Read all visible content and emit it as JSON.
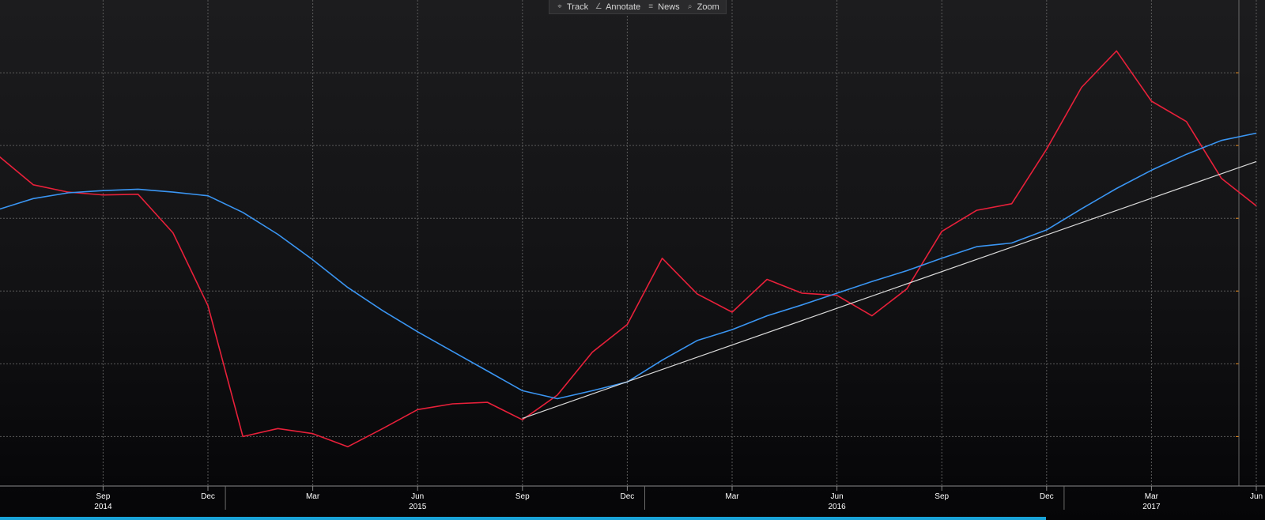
{
  "toolbar": {
    "items": [
      {
        "label": "Track",
        "icon": "crosshair-icon"
      },
      {
        "label": "Annotate",
        "icon": "pencil-icon"
      },
      {
        "label": "News",
        "icon": "news-icon"
      },
      {
        "label": "Zoom",
        "icon": "magnifier-icon"
      }
    ]
  },
  "chart_data": {
    "type": "line",
    "title": "",
    "xlabel": "",
    "ylabel": "",
    "grid": true,
    "colors": {
      "series_a": "#e8203a",
      "series_b": "#3a95f2",
      "trend": "#d9d9d9",
      "grid": "#5a5a5a",
      "axis_text": "#ffffff",
      "bottom_bar": "#19a3d8"
    },
    "x_ticks": [
      {
        "date": "2014-09",
        "label": "Sep",
        "year": "2014"
      },
      {
        "date": "2014-12",
        "label": "Dec"
      },
      {
        "date": "2015-03",
        "label": "Mar"
      },
      {
        "date": "2015-06",
        "label": "Jun",
        "year": "2015"
      },
      {
        "date": "2015-09",
        "label": "Sep"
      },
      {
        "date": "2015-12",
        "label": "Dec"
      },
      {
        "date": "2016-03",
        "label": "Mar"
      },
      {
        "date": "2016-06",
        "label": "Jun",
        "year": "2016"
      },
      {
        "date": "2016-09",
        "label": "Sep"
      },
      {
        "date": "2016-12",
        "label": "Dec"
      },
      {
        "date": "2017-03",
        "label": "Mar",
        "year": "2017"
      },
      {
        "date": "2017-06",
        "label": "Jun"
      }
    ],
    "y_gridlines": [
      100,
      200,
      300,
      400,
      500,
      600
    ],
    "ylim": [
      32,
      700
    ],
    "series": [
      {
        "key": "series_a",
        "points": [
          [
            "2014-06",
            486
          ],
          [
            "2014-07",
            446
          ],
          [
            "2014-08",
            436
          ],
          [
            "2014-09",
            432
          ],
          [
            "2014-10",
            433
          ],
          [
            "2014-11",
            380
          ],
          [
            "2014-12",
            280
          ],
          [
            "2015-01",
            100
          ],
          [
            "2015-02",
            111
          ],
          [
            "2015-03",
            104
          ],
          [
            "2015-04",
            86
          ],
          [
            "2015-05",
            111
          ],
          [
            "2015-06",
            137
          ],
          [
            "2015-07",
            145
          ],
          [
            "2015-08",
            147
          ],
          [
            "2015-09",
            123
          ],
          [
            "2015-10",
            157
          ],
          [
            "2015-11",
            216
          ],
          [
            "2015-12",
            254
          ],
          [
            "2016-01",
            345
          ],
          [
            "2016-02",
            296
          ],
          [
            "2016-03",
            271
          ],
          [
            "2016-04",
            316
          ],
          [
            "2016-05",
            297
          ],
          [
            "2016-06",
            294
          ],
          [
            "2016-07",
            266
          ],
          [
            "2016-08",
            303
          ],
          [
            "2016-09",
            382
          ],
          [
            "2016-10",
            411
          ],
          [
            "2016-11",
            420
          ],
          [
            "2016-12",
            495
          ],
          [
            "2017-01",
            580
          ],
          [
            "2017-02",
            630
          ],
          [
            "2017-03",
            561
          ],
          [
            "2017-04",
            533
          ],
          [
            "2017-05",
            455
          ],
          [
            "2017-06",
            417
          ]
        ]
      },
      {
        "key": "series_b",
        "points": [
          [
            "2014-06",
            412
          ],
          [
            "2014-07",
            427
          ],
          [
            "2014-08",
            435
          ],
          [
            "2014-09",
            438
          ],
          [
            "2014-10",
            440
          ],
          [
            "2014-11",
            436
          ],
          [
            "2014-12",
            431
          ],
          [
            "2015-01",
            408
          ],
          [
            "2015-02",
            378
          ],
          [
            "2015-03",
            343
          ],
          [
            "2015-04",
            305
          ],
          [
            "2015-05",
            273
          ],
          [
            "2015-06",
            244
          ],
          [
            "2015-07",
            217
          ],
          [
            "2015-08",
            190
          ],
          [
            "2015-09",
            163
          ],
          [
            "2015-10",
            152
          ],
          [
            "2015-11",
            163
          ],
          [
            "2015-12",
            175
          ],
          [
            "2016-01",
            205
          ],
          [
            "2016-02",
            232
          ],
          [
            "2016-03",
            247
          ],
          [
            "2016-04",
            266
          ],
          [
            "2016-05",
            281
          ],
          [
            "2016-06",
            297
          ],
          [
            "2016-07",
            313
          ],
          [
            "2016-08",
            328
          ],
          [
            "2016-09",
            345
          ],
          [
            "2016-10",
            361
          ],
          [
            "2016-11",
            366
          ],
          [
            "2016-12",
            384
          ],
          [
            "2017-01",
            413
          ],
          [
            "2017-02",
            441
          ],
          [
            "2017-03",
            466
          ],
          [
            "2017-04",
            488
          ],
          [
            "2017-05",
            507
          ],
          [
            "2017-06",
            517
          ]
        ]
      },
      {
        "key": "trend",
        "points": [
          [
            "2015-09",
            125
          ],
          [
            "2017-06",
            478
          ]
        ]
      }
    ]
  }
}
